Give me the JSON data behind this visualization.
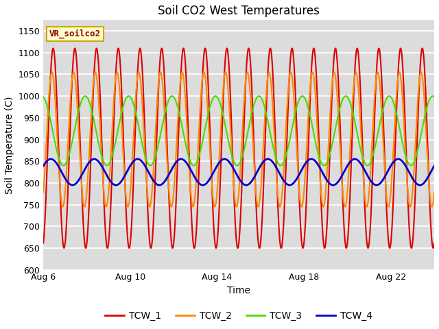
{
  "title": "Soil CO2 West Temperatures",
  "xlabel": "Time",
  "ylabel": "Soil Temperature (C)",
  "ylim": [
    600,
    1175
  ],
  "yticks": [
    600,
    650,
    700,
    750,
    800,
    850,
    900,
    950,
    1000,
    1050,
    1100,
    1150
  ],
  "xtick_labels": [
    "Aug 6",
    "Aug 10",
    "Aug 14",
    "Aug 18",
    "Aug 22"
  ],
  "xtick_positions": [
    6,
    10,
    14,
    18,
    22
  ],
  "annotation_text": "VR_soilco2",
  "annotation_bg": "#FFFFCC",
  "annotation_border": "#CCAA00",
  "series": {
    "TCW_1": {
      "color": "#DD0000",
      "linewidth": 1.5
    },
    "TCW_2": {
      "color": "#FF8800",
      "linewidth": 1.5
    },
    "TCW_3": {
      "color": "#44DD00",
      "linewidth": 1.5
    },
    "TCW_4": {
      "color": "#0000CC",
      "linewidth": 2.0
    }
  },
  "fig_bg": "#FFFFFF",
  "plot_bg": "#DCDCDC",
  "grid_color": "#FFFFFF",
  "grid_linewidth": 1.2,
  "tcw1_mean": 880,
  "tcw1_amp": 230,
  "tcw1_period": 1.0,
  "tcw1_phase": -1.26,
  "tcw2_mean": 900,
  "tcw2_amp": 155,
  "tcw2_period": 1.0,
  "tcw2_phase": -0.9,
  "tcw3_mean": 920,
  "tcw3_amp": 80,
  "tcw3_period": 2.0,
  "tcw3_phase": 1.8,
  "tcw4_mean": 825,
  "tcw4_amp": 30,
  "tcw4_period": 2.0,
  "tcw4_phase": 0.5
}
